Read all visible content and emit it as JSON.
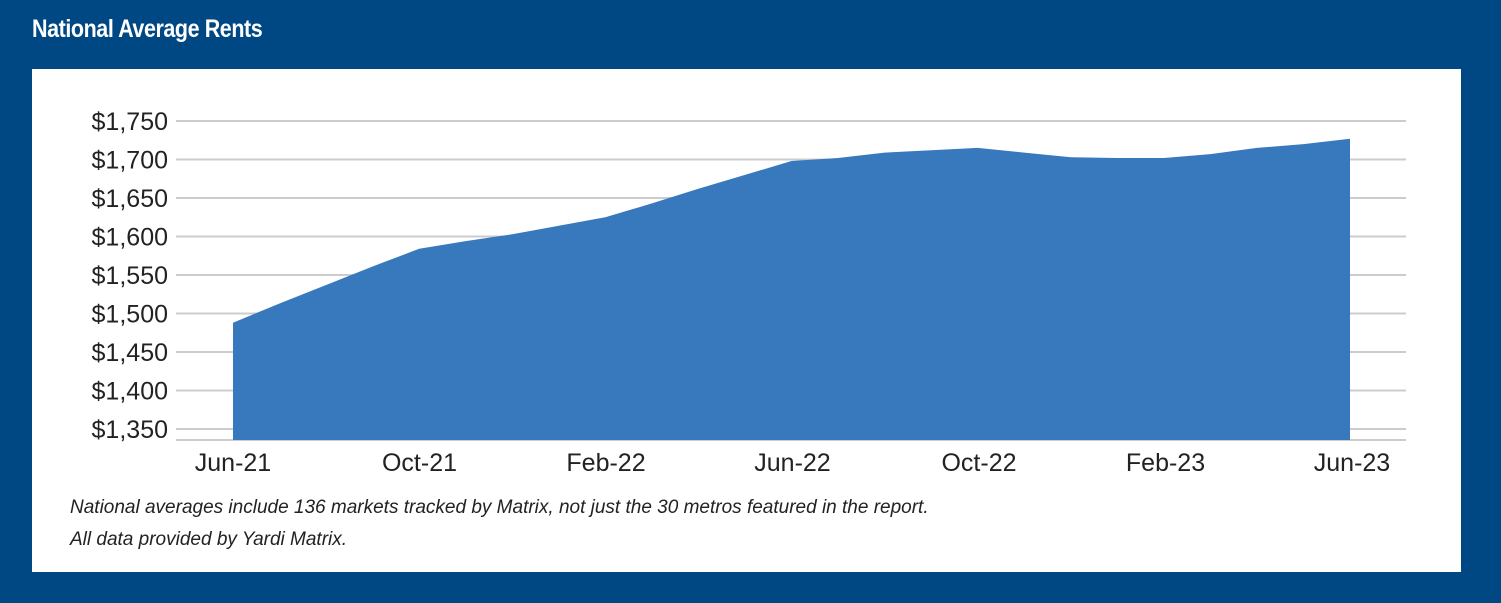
{
  "title": "National Average Rents",
  "colors": {
    "background": "#004884",
    "panel": "#ffffff",
    "area": "#3878BD",
    "grid": "#cccccc",
    "text": "#222222"
  },
  "chart_data": {
    "type": "area",
    "title": "National Average Rents",
    "xlabel": "",
    "ylabel": "",
    "x_tick_labels": [
      "Jun-21",
      "Oct-21",
      "Feb-22",
      "Jun-22",
      "Oct-22",
      "Feb-23",
      "Jun-23"
    ],
    "y_tick_labels": [
      "$1,350",
      "$1,400",
      "$1,450",
      "$1,500",
      "$1,550",
      "$1,600",
      "$1,650",
      "$1,700",
      "$1,750"
    ],
    "y_ticks": [
      1350,
      1400,
      1450,
      1500,
      1550,
      1600,
      1650,
      1700,
      1750
    ],
    "ylim": [
      1330,
      1750
    ],
    "grid": true,
    "legend": "none",
    "x": [
      "Jun-21",
      "Jul-21",
      "Aug-21",
      "Sep-21",
      "Oct-21",
      "Nov-21",
      "Dec-21",
      "Jan-22",
      "Feb-22",
      "Mar-22",
      "Apr-22",
      "May-22",
      "Jun-22",
      "Jul-22",
      "Aug-22",
      "Sep-22",
      "Oct-22",
      "Nov-22",
      "Dec-22",
      "Jan-23",
      "Feb-23",
      "Mar-23",
      "Apr-23",
      "May-23",
      "Jun-23"
    ],
    "series": [
      {
        "values": [
          1488,
          1513,
          1537,
          1561,
          1584,
          1594,
          1603,
          1614,
          1625,
          1643,
          1662,
          1680,
          1698,
          1702,
          1709,
          1712,
          1715,
          1709,
          1703,
          1702,
          1702,
          1707,
          1715,
          1720,
          1727
        ]
      }
    ]
  },
  "notes": {
    "line1": "National averages include 136 markets tracked by Matrix, not just the 30 metros featured in the report.",
    "line2": "All data provided by Yardi Matrix."
  }
}
